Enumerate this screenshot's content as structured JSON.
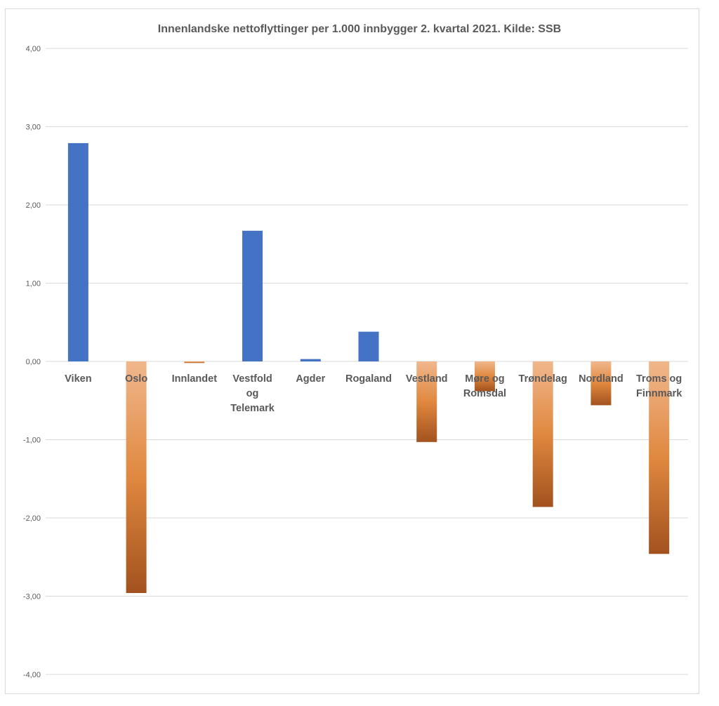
{
  "chart_data": {
    "type": "bar",
    "title": "Innenlandske nettoflyttinger per 1.000 innbygger 2. kvartal 2021. Kilde: SSB",
    "xlabel": "",
    "ylabel": "",
    "ylim": [
      -4,
      4
    ],
    "yticks": [
      4,
      3,
      2,
      1,
      0,
      -1,
      -2,
      -3,
      -4
    ],
    "ytick_labels": [
      "4,00",
      "3,00",
      "2,00",
      "1,00",
      "0,00",
      "-1,00",
      "-2,00",
      "-3,00",
      "-4,00"
    ],
    "grid": true,
    "categories": [
      "Viken",
      "Oslo",
      "Innlandet",
      "Vestfold og Telemark",
      "Agder",
      "Rogaland",
      "Vestland",
      "Møre og Romsdal",
      "Trøndelag",
      "Nordland",
      "Troms og Finnmark"
    ],
    "category_lines": [
      [
        "Viken"
      ],
      [
        "Oslo"
      ],
      [
        "Innlandet"
      ],
      [
        "Vestfold",
        "og",
        "Telemark"
      ],
      [
        "Agder"
      ],
      [
        "Rogaland"
      ],
      [
        "Vestland"
      ],
      [
        "Møre og",
        "Romsdal"
      ],
      [
        "Trøndelag"
      ],
      [
        "Nordland"
      ],
      [
        "Troms og",
        "Finnmark"
      ]
    ],
    "values": [
      2.79,
      -2.96,
      -0.02,
      1.67,
      0.03,
      0.38,
      -1.03,
      -0.38,
      -1.86,
      -0.56,
      -2.46
    ],
    "colors": {
      "positive": "#4472c4",
      "negative_top": "#f0b78c",
      "negative_mid": "#e0883f",
      "negative_bottom": "#a3521f",
      "grid": "#d9d9d9",
      "text": "#595959"
    }
  }
}
